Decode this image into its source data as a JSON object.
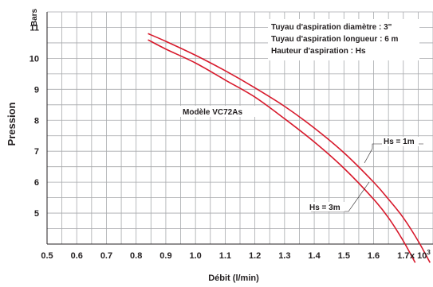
{
  "chart_data": {
    "type": "line",
    "ylabel": "Pression",
    "yunit": "Bars",
    "xlabel": "Débit  (l/min)",
    "xunit": "x 10",
    "xunit_exp": "3",
    "xlim": [
      0.5,
      1.8
    ],
    "ylim": [
      4,
      11.5
    ],
    "xticks": [
      "0.5",
      "0.6",
      "0.7",
      "0.8",
      "0.9",
      "1.0",
      "1.1",
      "1.2",
      "1.3",
      "1.4",
      "1.5",
      "1.6",
      "1.7"
    ],
    "yticks": [
      "5",
      "6",
      "7",
      "8",
      "9",
      "10",
      "11"
    ],
    "grid": true,
    "notes": [
      "Tuyau d'aspiration  diamètre : 3\"",
      "Tuyau d'aspiration  longueur : 6 m",
      "Hauteur d'aspiration : Hs"
    ],
    "model_label": "Modèle VC72As",
    "series": [
      {
        "name": "Hs = 1m",
        "x": [
          0.84,
          0.9,
          1.0,
          1.1,
          1.2,
          1.3,
          1.4,
          1.5,
          1.6,
          1.65,
          1.7,
          1.75,
          1.79
        ],
        "y": [
          10.8,
          10.55,
          10.1,
          9.6,
          9.05,
          8.45,
          7.75,
          6.95,
          6.0,
          5.45,
          4.85,
          4.1,
          3.4
        ]
      },
      {
        "name": "Hs = 3m",
        "x": [
          0.84,
          0.9,
          1.0,
          1.1,
          1.2,
          1.3,
          1.4,
          1.5,
          1.6,
          1.65,
          1.7,
          1.74
        ],
        "y": [
          10.6,
          10.3,
          9.85,
          9.3,
          8.75,
          8.05,
          7.3,
          6.45,
          5.45,
          4.85,
          4.1,
          3.4
        ]
      }
    ]
  }
}
